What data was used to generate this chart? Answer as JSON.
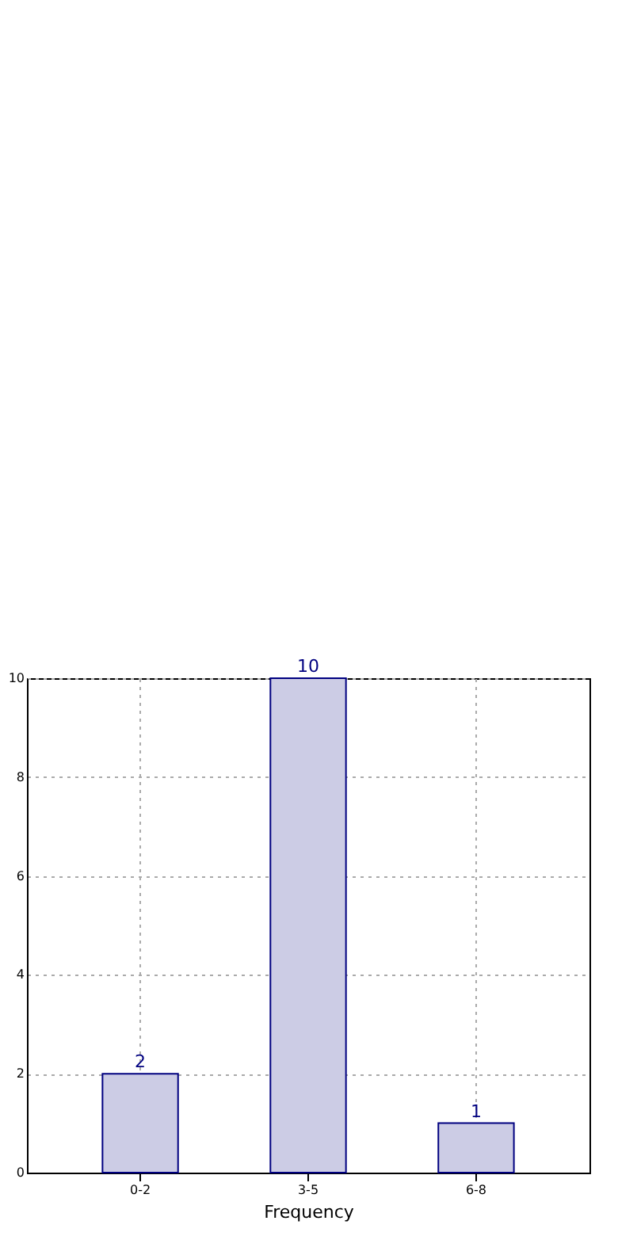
{
  "chart_data": {
    "type": "bar",
    "xlabel": "Frequency",
    "categories": [
      "0-2",
      "3-5",
      "6-8"
    ],
    "series": [
      {
        "color": "#cccce5",
        "values": [
          2,
          10,
          1
        ]
      }
    ],
    "ylim": [
      0,
      10
    ],
    "yticks": [
      0,
      2,
      4,
      6,
      8,
      10
    ],
    "grid": true,
    "data_labels": true
  }
}
